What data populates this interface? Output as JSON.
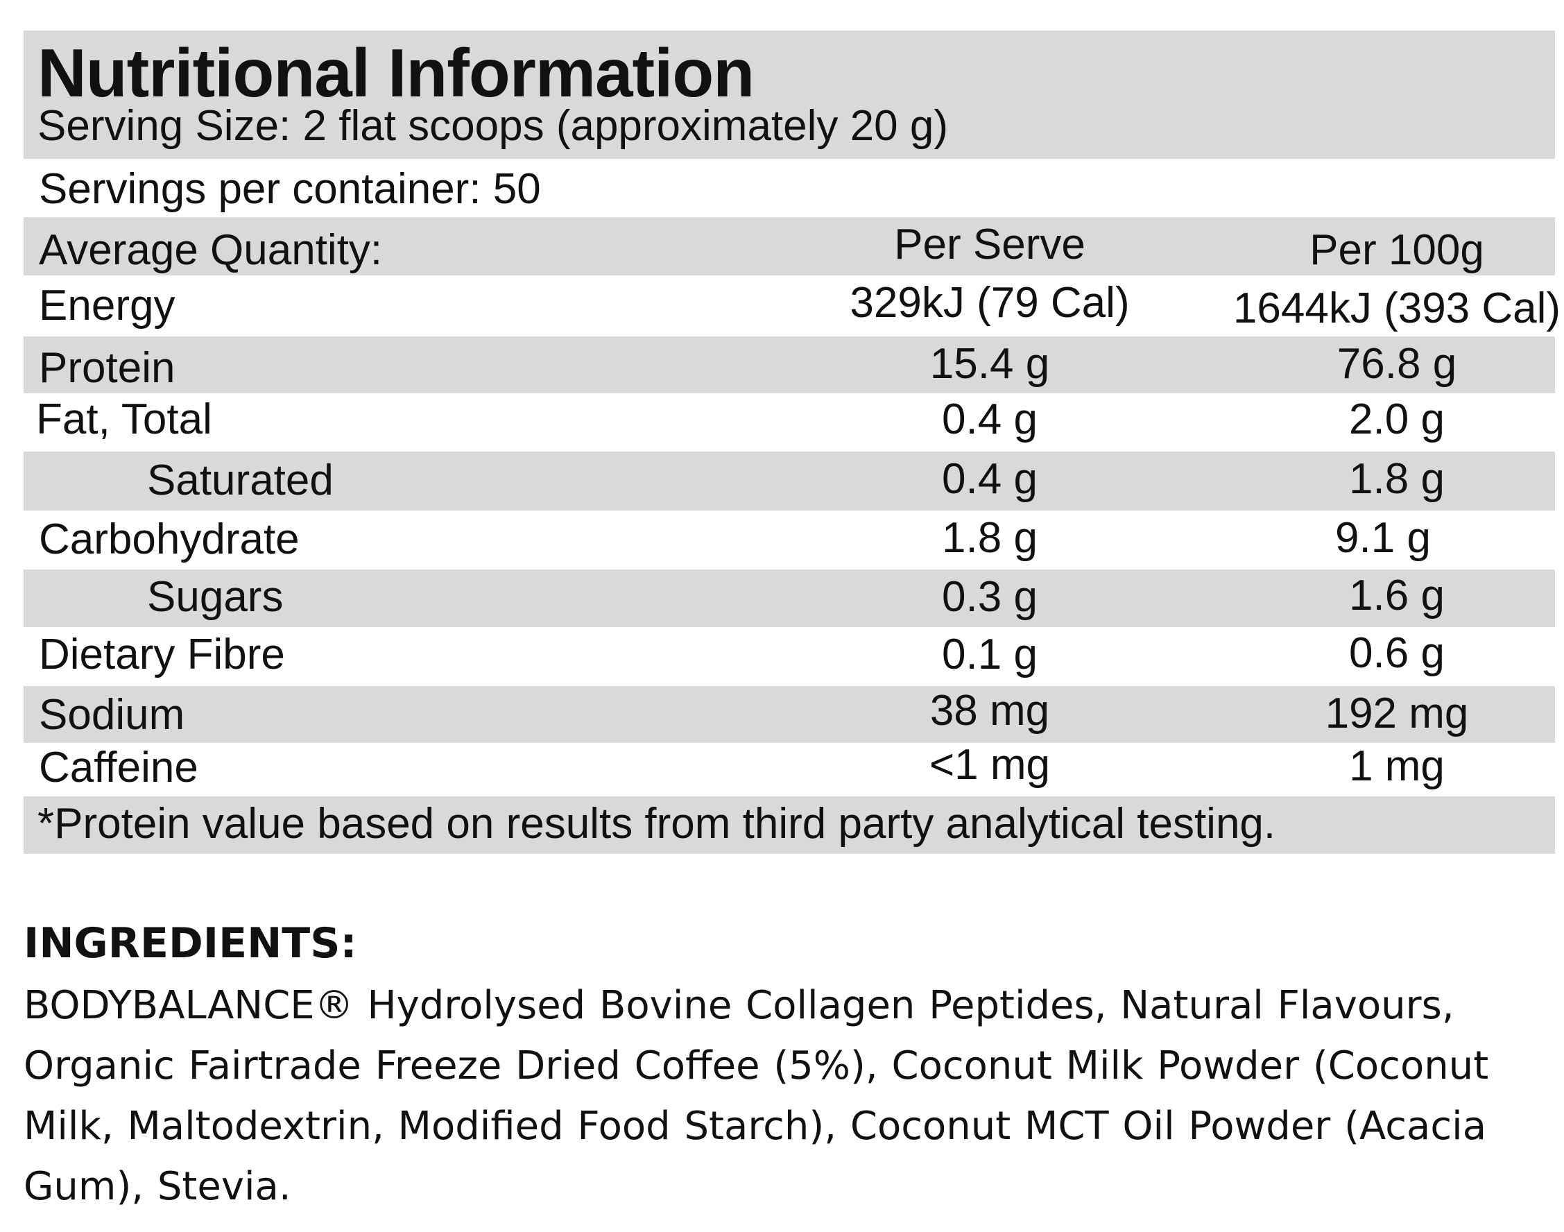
{
  "nutrition": {
    "title": "Nutritional Information",
    "serving_size": "Serving Size: 2 flat scoops (approximately 20 g)",
    "servings_per_container": "Servings per container: 50",
    "header": {
      "label": "Average Quantity:",
      "col1": "Per Serve",
      "col2": "Per 100g"
    },
    "rows": [
      {
        "label": "Energy",
        "per_serve": "329kJ (79 Cal)",
        "per_100g": "1644kJ (393 Cal)"
      },
      {
        "label": "Protein",
        "per_serve": "15.4 g",
        "per_100g": "76.8 g"
      },
      {
        "label": "Fat, Total",
        "per_serve": "0.4 g",
        "per_100g": "2.0 g"
      },
      {
        "label": "Saturated",
        "per_serve": "0.4 g",
        "per_100g": "1.8 g"
      },
      {
        "label": "Carbohydrate",
        "per_serve": "1.8 g",
        "per_100g": "9.1 g"
      },
      {
        "label": "Sugars",
        "per_serve": "0.3 g",
        "per_100g": "1.6 g"
      },
      {
        "label": "Dietary Fibre",
        "per_serve": "0.1 g",
        "per_100g": "0.6 g"
      },
      {
        "label": "Sodium",
        "per_serve": "38 mg",
        "per_100g": "192 mg"
      },
      {
        "label": "Caffeine",
        "per_serve": "<1 mg",
        "per_100g": "1 mg"
      }
    ],
    "footnote": "*Protein value based on results from third party analytical testing."
  },
  "ingredients": {
    "heading": "INGREDIENTS:",
    "text": "BODYBALANCE® Hydrolysed Bovine Collagen Peptides, Natural Flavours, Organic Fairtrade Freeze Dried Coffee (5%), Coconut Milk Powder (Coconut Milk, Maltodextrin, Modified Food Starch), Coconut MCT Oil Powder (Acacia Gum), Stevia."
  },
  "colors": {
    "shade": "#d9d9d9",
    "text": "#111111",
    "background": "#ffffff"
  }
}
